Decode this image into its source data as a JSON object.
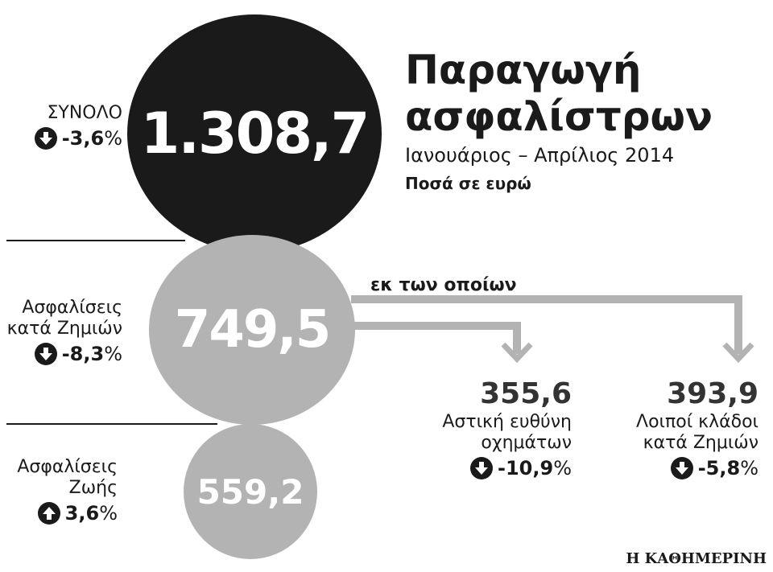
{
  "title_line1": "Παραγωγή",
  "title_line2": "ασφαλίστρων",
  "subtitle": "Ιανουάριος – Απρίλιος 2014",
  "units": "Ποσά σε ευρώ",
  "connector_label": "εκ των οποίων",
  "source": "Η ΚΑΘΗΜΕΡΙΝΗ",
  "colors": {
    "dark": "#1a1a1a",
    "gray": "#b3b3b3",
    "connector": "#b3b3b3"
  },
  "total": {
    "label": "ΣΥΝΟΛΟ",
    "value": "1.308,7",
    "change_num": "-3,6",
    "change_pct": "%",
    "direction": "down",
    "arrow_icon": "down-arrow-icon"
  },
  "non_life": {
    "label_line1": "Ασφαλίσεις",
    "label_line2": "κατά Ζημιών",
    "value": "749,5",
    "change_num": "-8,3",
    "change_pct": "%",
    "direction": "down",
    "arrow_icon": "down-arrow-icon"
  },
  "life": {
    "label_line1": "Ασφαλίσεις",
    "label_line2": "Ζωής",
    "value": "559,2",
    "change_num": "3,6",
    "change_pct": "%",
    "direction": "up",
    "arrow_icon": "up-arrow-icon"
  },
  "motor": {
    "value": "355,6",
    "label_line1": "Αστική ευθύνη",
    "label_line2": "οχημάτων",
    "change_num": "-10,9",
    "change_pct": "%",
    "direction": "down",
    "arrow_icon": "down-arrow-icon"
  },
  "other": {
    "value": "393,9",
    "label_line1": "Λοιποί κλάδοι",
    "label_line2": "κατά Ζημιών",
    "change_num": "-5,8",
    "change_pct": "%",
    "direction": "down",
    "arrow_icon": "down-arrow-icon"
  }
}
